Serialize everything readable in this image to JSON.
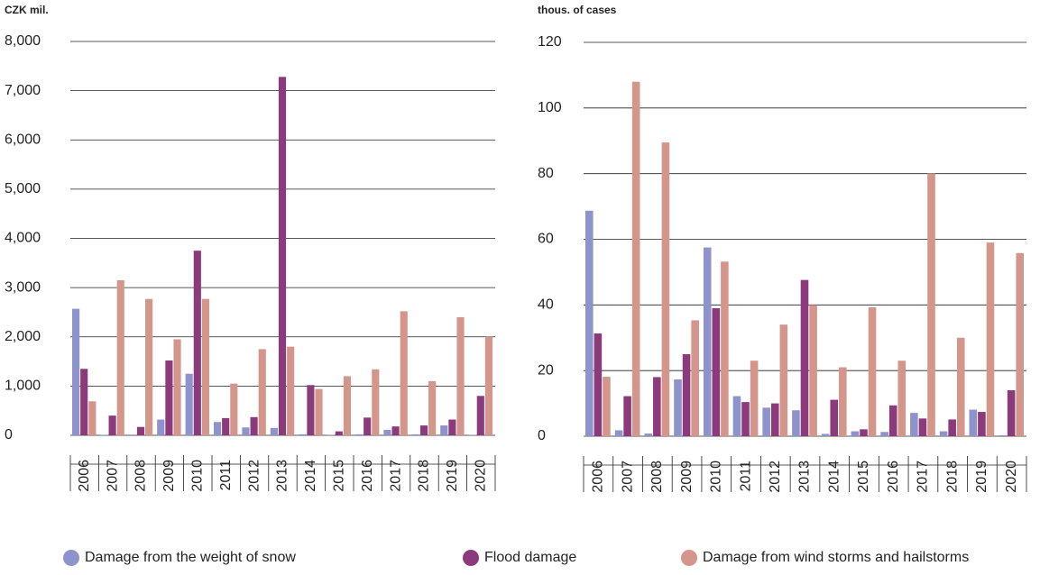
{
  "chart_data": [
    {
      "type": "bar",
      "y_label": "CZK mil.",
      "categories": [
        "2006",
        "2007",
        "2008",
        "2009",
        "2010",
        "2011",
        "2012",
        "2013",
        "2014",
        "2015",
        "2016",
        "2017",
        "2018",
        "2019",
        "2020"
      ],
      "series": [
        {
          "name": "Damage from the weight of snow",
          "color": "#8f93cc",
          "values": [
            2570,
            10,
            0,
            320,
            1250,
            270,
            160,
            150,
            20,
            10,
            20,
            110,
            20,
            200,
            10
          ]
        },
        {
          "name": "Flood damage",
          "color": "#8b3a7c",
          "values": [
            1350,
            400,
            170,
            1520,
            3750,
            350,
            370,
            7280,
            1020,
            80,
            360,
            180,
            200,
            320,
            800
          ]
        },
        {
          "name": "Damage from wind storms and hailstorms",
          "color": "#d4958a",
          "values": [
            690,
            3150,
            2770,
            1950,
            2770,
            1050,
            1750,
            1800,
            940,
            1200,
            1340,
            2520,
            1100,
            2400,
            2000
          ]
        }
      ],
      "ylim": [
        0,
        8000
      ],
      "yticks": [
        0,
        {
          "value": 1000,
          "label": "1,000"
        },
        {
          "value": 2000,
          "label": "2,000"
        },
        {
          "value": 3000,
          "label": "3,000"
        },
        {
          "value": 4000,
          "label": "4,000"
        },
        {
          "value": 5000,
          "label": "5,000"
        },
        {
          "value": 6000,
          "label": "6,000"
        },
        {
          "value": 7000,
          "label": "7,000"
        },
        {
          "value": 8000,
          "label": "8,000"
        }
      ],
      "grid": true
    },
    {
      "type": "bar",
      "y_label": "thous. of cases",
      "categories": [
        "2006",
        "2007",
        "2008",
        "2009",
        "2010",
        "2011",
        "2012",
        "2013",
        "2014",
        "2015",
        "2016",
        "2017",
        "2018",
        "2019",
        "2020"
      ],
      "series": [
        {
          "color": "#8f93cc",
          "values": [
            68.7,
            1.8,
            0.8,
            17.3,
            57.5,
            12.2,
            8.7,
            7.9,
            0.7,
            1.5,
            1.3,
            7.1,
            1.5,
            8.1,
            0.3
          ]
        },
        {
          "color": "#8b3a7c",
          "values": [
            31.3,
            12.2,
            18,
            25,
            39,
            10.4,
            10,
            47.6,
            11.1,
            2.1,
            9.4,
            5.4,
            5.1,
            7.4,
            14
          ]
        },
        {
          "color": "#d4958a",
          "values": [
            18.1,
            108,
            89.5,
            35.3,
            53.2,
            23,
            34,
            40,
            21,
            39.3,
            23,
            80,
            30,
            59,
            55.8
          ]
        }
      ],
      "ylim": [
        0,
        120
      ],
      "yticks": [
        0,
        20,
        40,
        60,
        80,
        100,
        120
      ],
      "grid": true
    }
  ]
}
